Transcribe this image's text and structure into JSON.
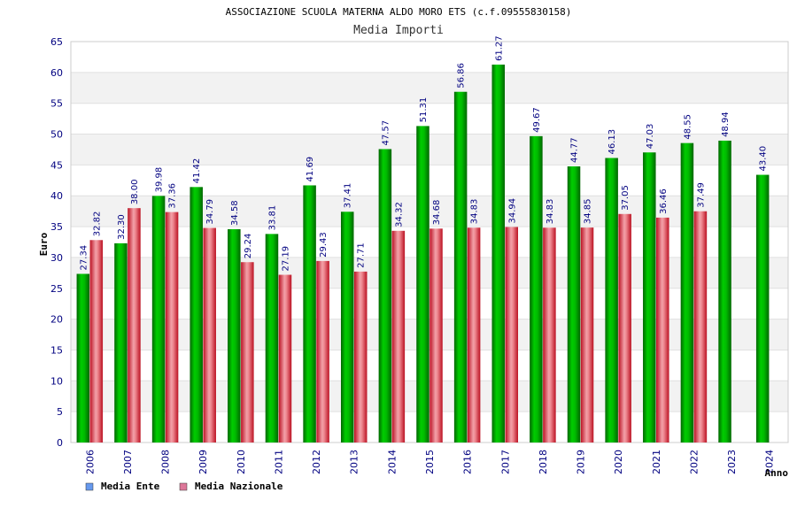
{
  "chart_data": {
    "type": "bar",
    "title": "ASSOCIAZIONE SCUOLA MATERNA ALDO MORO ETS (c.f.09555830158)",
    "subtitle": "Media Importi",
    "ylabel": "Euro",
    "xlabel": "Anno",
    "ylim": [
      0,
      65
    ],
    "yticks": [
      0,
      5,
      10,
      15,
      20,
      25,
      30,
      35,
      40,
      45,
      50,
      55,
      60,
      65
    ],
    "grid": true,
    "legend_position": "bottom-left",
    "categories": [
      "2006",
      "2007",
      "2008",
      "2009",
      "2010",
      "2011",
      "2012",
      "2013",
      "2014",
      "2015",
      "2016",
      "2017",
      "2018",
      "2019",
      "2020",
      "2021",
      "2022",
      "2023",
      "2024"
    ],
    "series": [
      {
        "name": "Media Ente",
        "color": "#00aa00",
        "legend_color": "#6699ee",
        "values": [
          27.34,
          32.3,
          39.98,
          41.42,
          34.58,
          33.81,
          41.69,
          37.41,
          47.57,
          51.31,
          56.86,
          61.27,
          49.67,
          44.77,
          46.13,
          47.03,
          48.55,
          48.94,
          43.4
        ],
        "labels": [
          "27.34",
          "32.30",
          "39.98",
          "41.42",
          "34.58",
          "33.81",
          "41.69",
          "37.41",
          "47.57",
          "51.31",
          "56.86",
          "61.27",
          "49.67",
          "44.77",
          "46.13",
          "47.03",
          "48.55",
          "48.94",
          "43.40"
        ]
      },
      {
        "name": "Media Nazionale",
        "color": "#dd3344",
        "legend_color": "#dd7799",
        "values": [
          32.82,
          38.0,
          37.36,
          34.79,
          29.24,
          27.19,
          29.43,
          27.71,
          34.32,
          34.68,
          34.83,
          34.94,
          34.83,
          34.85,
          37.05,
          36.46,
          37.49,
          null,
          null
        ],
        "labels": [
          "32.82",
          "38.00",
          "37.36",
          "34.79",
          "29.24",
          "27.19",
          "29.43",
          "27.71",
          "34.32",
          "34.68",
          "34.83",
          "34.94",
          "34.83",
          "34.85",
          "37.05",
          "36.46",
          "37.49",
          null,
          null
        ]
      }
    ]
  }
}
